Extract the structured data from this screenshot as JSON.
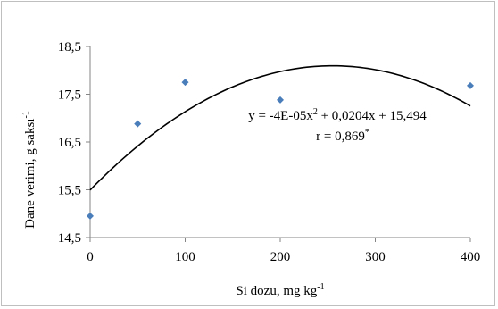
{
  "chart_data": {
    "type": "scatter",
    "x": [
      0,
      50,
      100,
      200,
      400
    ],
    "y": [
      14.95,
      16.88,
      17.75,
      17.38,
      17.68
    ],
    "marker_color": "#4a7ebb",
    "trendline": {
      "type": "polynomial",
      "coefficients": {
        "a": -4e-05,
        "b": 0.0204,
        "c": 15.494
      },
      "color": "#000000"
    },
    "xlim": [
      0,
      400
    ],
    "ylim": [
      14.5,
      18.5
    ],
    "xticks": [
      0,
      100,
      200,
      300,
      400
    ],
    "yticks": [
      14.5,
      15.5,
      16.5,
      17.5,
      18.5
    ],
    "xtick_labels": [
      "0",
      "100",
      "200",
      "300",
      "400"
    ],
    "ytick_labels": [
      "14,5",
      "15,5",
      "16,5",
      "17,5",
      "18,5"
    ],
    "xlabel": {
      "main": "Si dozu, mg kg",
      "sup": "-1"
    },
    "ylabel": {
      "main": "Dane verimi, g saksı",
      "sup": "-1"
    },
    "equation": {
      "pre": "y = -4E-05x",
      "sup": "2",
      "post": " + 0,0204x + 15,494"
    },
    "r_label": {
      "main": "r = 0,869",
      "sup": "*"
    },
    "grid": false,
    "legend": "none"
  }
}
